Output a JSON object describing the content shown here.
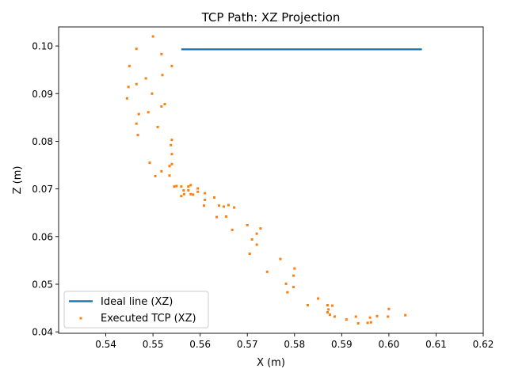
{
  "chart_data": {
    "type": "scatter",
    "title": "TCP Path: XZ Projection",
    "xlabel": "X (m)",
    "ylabel": "Z (m)",
    "xlim": [
      0.53,
      0.62
    ],
    "ylim": [
      0.0397,
      0.104
    ],
    "xticks": [
      0.54,
      0.55,
      0.56,
      0.57,
      0.58,
      0.59,
      0.6,
      0.61,
      0.62
    ],
    "xtick_labels": [
      "0.54",
      "0.55",
      "0.56",
      "0.57",
      "0.58",
      "0.59",
      "0.60",
      "0.61",
      "0.62"
    ],
    "yticks": [
      0.04,
      0.05,
      0.06,
      0.07,
      0.08,
      0.09,
      0.1
    ],
    "ytick_labels": [
      "0.04",
      "0.05",
      "0.06",
      "0.07",
      "0.08",
      "0.09",
      "0.10"
    ],
    "grid": false,
    "legend_position": "bottom-left",
    "series": [
      {
        "name": "Ideal line (XZ)",
        "kind": "line",
        "color": "#1f77b4",
        "x": [
          0.556,
          0.607
        ],
        "y": [
          0.0993,
          0.0993
        ]
      },
      {
        "name": "Executed TCP (XZ)",
        "kind": "scatter",
        "color": "#ff7f0e",
        "x": [
          0.55,
          0.5465,
          0.5518,
          0.545,
          0.554,
          0.5485,
          0.552,
          0.5465,
          0.5448,
          0.5498,
          0.5445,
          0.5525,
          0.5518,
          0.549,
          0.547,
          0.551,
          0.5465,
          0.554,
          0.5538,
          0.5468,
          0.554,
          0.5493,
          0.554,
          0.5535,
          0.5518,
          0.5505,
          0.5535,
          0.556,
          0.558,
          0.5575,
          0.5595,
          0.5545,
          0.555,
          0.5575,
          0.5585,
          0.5566,
          0.561,
          0.5595,
          0.563,
          0.561,
          0.556,
          0.5565,
          0.564,
          0.5608,
          0.558,
          0.566,
          0.565,
          0.5672,
          0.5635,
          0.5655,
          0.5668,
          0.57,
          0.5728,
          0.572,
          0.571,
          0.572,
          0.5705,
          0.577,
          0.5742,
          0.58,
          0.5798,
          0.5782,
          0.5798,
          0.5785,
          0.5828,
          0.585,
          0.587,
          0.588,
          0.5872,
          0.587,
          0.5875,
          0.5885,
          0.591,
          0.593,
          0.5935,
          0.596,
          0.5962,
          0.5955,
          0.5975,
          0.6,
          0.5998,
          0.6035
        ],
        "y": [
          0.102,
          0.0994,
          0.0983,
          0.0958,
          0.0958,
          0.0932,
          0.0939,
          0.092,
          0.0914,
          0.09,
          0.089,
          0.0878,
          0.0873,
          0.0861,
          0.0857,
          0.083,
          0.0837,
          0.0803,
          0.0792,
          0.0813,
          0.0773,
          0.0755,
          0.0752,
          0.0748,
          0.0737,
          0.0727,
          0.0728,
          0.0705,
          0.0708,
          0.0705,
          0.0701,
          0.0705,
          0.0706,
          0.0697,
          0.0688,
          0.0689,
          0.0691,
          0.0694,
          0.0682,
          0.0677,
          0.0685,
          0.0697,
          0.0665,
          0.0665,
          0.0689,
          0.0666,
          0.0663,
          0.0661,
          0.0641,
          0.0642,
          0.0614,
          0.0624,
          0.0617,
          0.0606,
          0.0594,
          0.0583,
          0.0564,
          0.0553,
          0.0526,
          0.0533,
          0.0518,
          0.0501,
          0.0494,
          0.0483,
          0.0456,
          0.047,
          0.0456,
          0.0455,
          0.0447,
          0.0441,
          0.0436,
          0.0432,
          0.0426,
          0.0432,
          0.0418,
          0.043,
          0.042,
          0.0419,
          0.0433,
          0.0448,
          0.0432,
          0.0435
        ]
      }
    ]
  }
}
